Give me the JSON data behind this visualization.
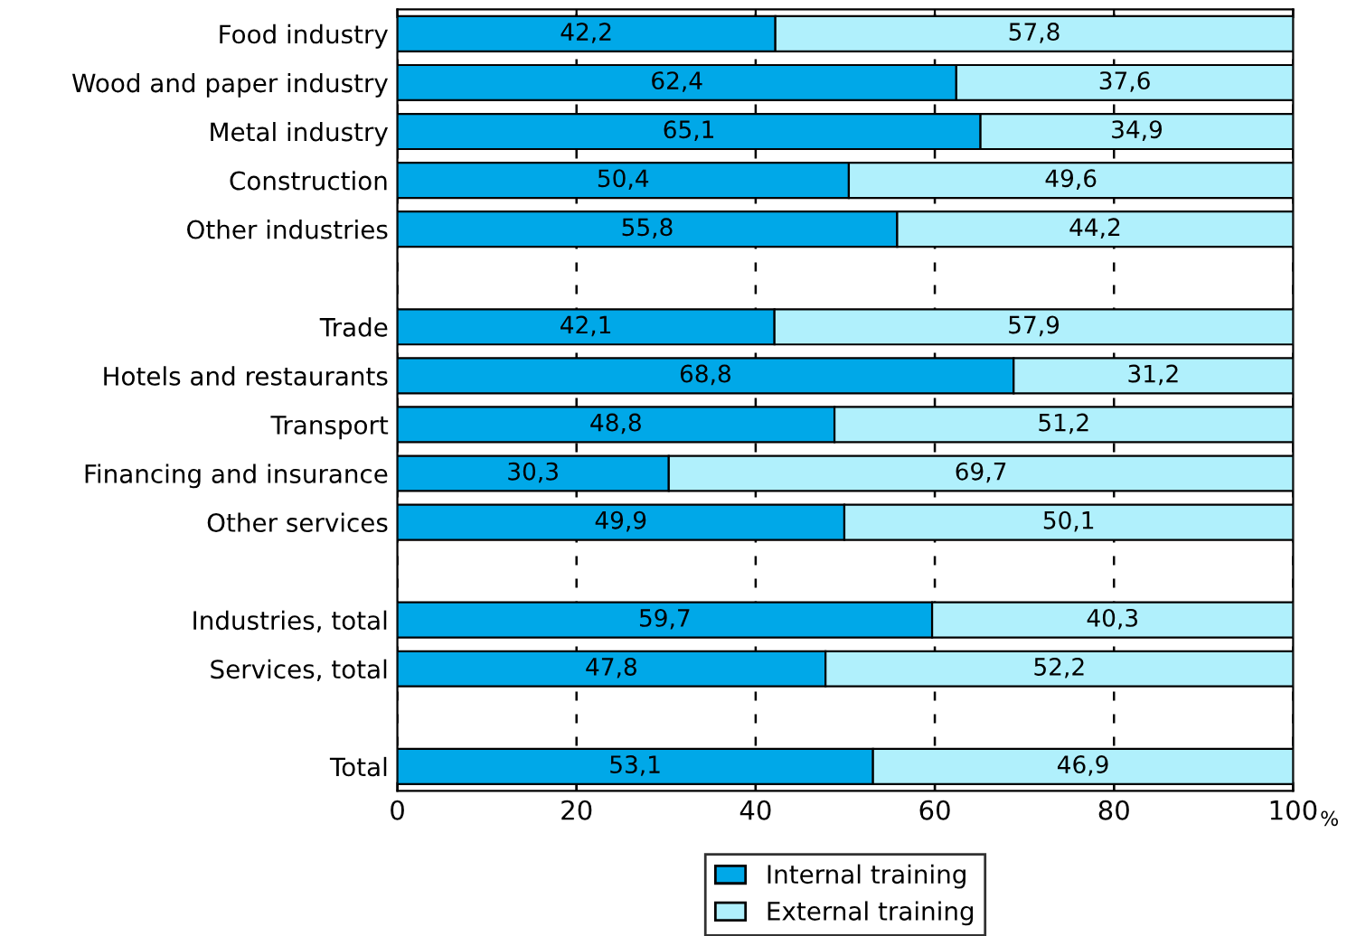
{
  "chart_data": {
    "type": "bar",
    "orientation": "horizontal",
    "stacked": true,
    "categories": [
      "Food industry",
      "Wood and paper industry",
      "Metal industry",
      "Construction",
      "Other industries",
      null,
      "Trade",
      "Hotels and restaurants",
      "Transport",
      "Financing and insurance",
      "Other services",
      null,
      "Industries, total",
      "Services, total",
      null,
      "Total"
    ],
    "series": [
      {
        "name": "Internal training",
        "color": "#00a8e8",
        "values": [
          42.2,
          62.4,
          65.1,
          50.4,
          55.8,
          null,
          42.1,
          68.8,
          48.8,
          30.3,
          49.9,
          null,
          59.7,
          47.8,
          null,
          53.1
        ],
        "value_labels": [
          "42,2",
          "62,4",
          "65,1",
          "50,4",
          "55,8",
          null,
          "42,1",
          "68,8",
          "48,8",
          "30,3",
          "49,9",
          null,
          "59,7",
          "47,8",
          null,
          "53,1"
        ]
      },
      {
        "name": "External training",
        "color": "#b0f0fc",
        "values": [
          57.8,
          37.6,
          34.9,
          49.6,
          44.2,
          null,
          57.9,
          31.2,
          51.2,
          69.7,
          50.1,
          null,
          40.3,
          52.2,
          null,
          46.9
        ],
        "value_labels": [
          "57,8",
          "37,6",
          "34,9",
          "49,6",
          "44,2",
          null,
          "57,9",
          "31,2",
          "51,2",
          "69,7",
          "50,1",
          null,
          "40,3",
          "52,2",
          null,
          "46,9"
        ]
      }
    ],
    "xlim": [
      0,
      100
    ],
    "xticks": [
      0,
      20,
      40,
      60,
      80,
      100
    ],
    "xlabel": "%",
    "grid": "x",
    "legend": "bottom"
  }
}
